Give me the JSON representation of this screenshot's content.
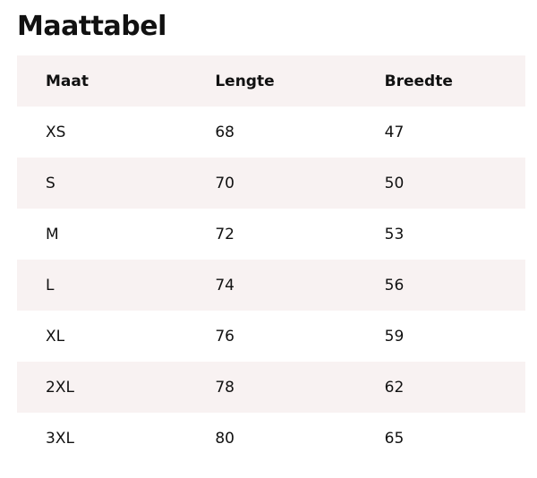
{
  "title": "Maattabel",
  "table": {
    "headers": [
      "Maat",
      "Lengte",
      "Breedte"
    ],
    "rows": [
      [
        "XS",
        "68",
        "47"
      ],
      [
        "S",
        "70",
        "50"
      ],
      [
        "M",
        "72",
        "53"
      ],
      [
        "L",
        "74",
        "56"
      ],
      [
        "XL",
        "76",
        "59"
      ],
      [
        "2XL",
        "78",
        "62"
      ],
      [
        "3XL",
        "80",
        "65"
      ]
    ]
  },
  "colors": {
    "stripe": "#f8f2f2"
  }
}
